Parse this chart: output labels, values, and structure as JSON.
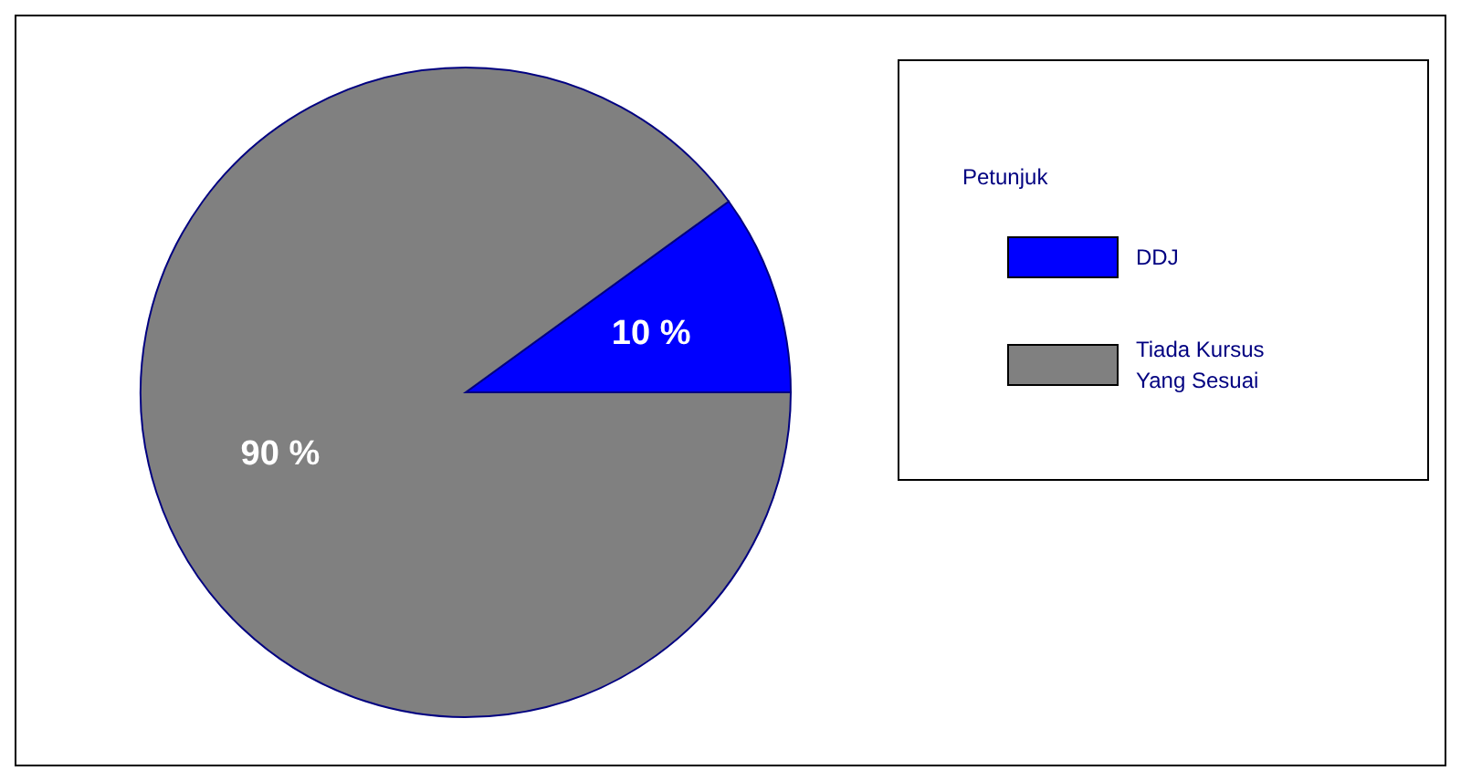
{
  "chart_data": {
    "type": "pie",
    "categories": [
      "DDJ",
      "Tiada Kursus Yang Sesuai"
    ],
    "values": [
      10,
      90
    ],
    "colors": [
      "#0000ff",
      "#808080"
    ],
    "value_labels": [
      "10 %",
      "90 %"
    ],
    "legend": "right",
    "legend_title": "Petunjuk"
  }
}
